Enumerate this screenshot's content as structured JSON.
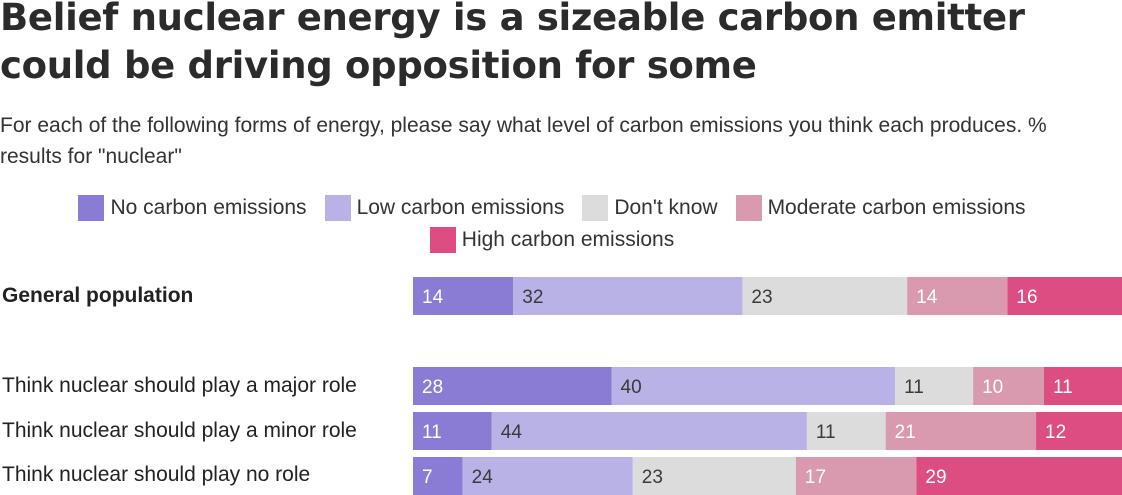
{
  "title": "Belief nuclear energy is a sizeable carbon emitter could be driving opposition for some",
  "subtitle": "For each of the following forms of energy, please say what level of carbon emissions you think each produces. % results for \"nuclear\"",
  "legend": [
    {
      "label": "No carbon emissions",
      "color": "#8a7bd5"
    },
    {
      "label": "Low carbon emissions",
      "color": "#b9b2e6"
    },
    {
      "label": "Don't know",
      "color": "#dcdcdc"
    },
    {
      "label": "Moderate carbon emissions",
      "color": "#d99ab0"
    },
    {
      "label": "High carbon emissions",
      "color": "#dc4d82"
    }
  ],
  "chart_data": {
    "type": "bar",
    "orientation": "horizontal",
    "stacked": true,
    "categories": [
      "General population",
      "Think nuclear should play a major role",
      "Think nuclear should play a minor role",
      "Think nuclear should play no role"
    ],
    "series": [
      {
        "name": "No carbon emissions",
        "color": "#8a7bd5",
        "values": [
          14,
          28,
          11,
          7
        ]
      },
      {
        "name": "Low carbon emissions",
        "color": "#b9b2e6",
        "values": [
          32,
          40,
          44,
          24
        ]
      },
      {
        "name": "Don't know",
        "color": "#dcdcdc",
        "values": [
          23,
          11,
          11,
          23
        ]
      },
      {
        "name": "Moderate carbon emissions",
        "color": "#d99ab0",
        "values": [
          14,
          10,
          21,
          17
        ]
      },
      {
        "name": "High carbon emissions",
        "color": "#dc4d82",
        "values": [
          16,
          11,
          12,
          29
        ]
      }
    ],
    "legend_position": "top"
  }
}
